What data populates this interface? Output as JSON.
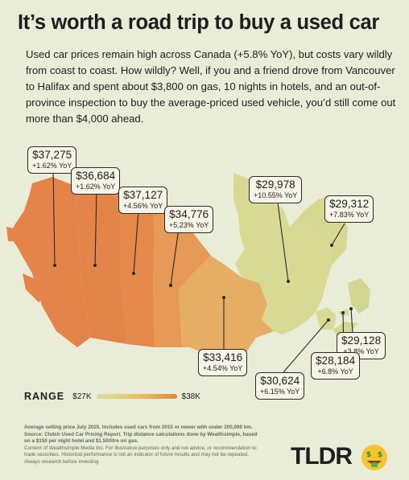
{
  "title": "It’s worth a road trip to buy a used car",
  "intro": "Used car prices remain high across Canada (+5.8% YoY), but costs vary wildly from coast to coast. How wildly? Well, if you and a friend drove from Vancouver to Halifax and spent about $3,800 on gas, 10 nights in hotels, and an out-of-province inspection to buy the average-priced used vehicle, you’d still come out more than $4,000 ahead.",
  "colors": {
    "background": "#e9ecd6",
    "high": "#e3873e",
    "mid": "#e7c26a",
    "low": "#d8dea2"
  },
  "callouts": [
    {
      "region": "British Columbia",
      "price": "$37,275",
      "yoy": "+1.62% YoY"
    },
    {
      "region": "Alberta",
      "price": "$36,684",
      "yoy": "+1.62% YoY"
    },
    {
      "region": "Saskatchewan",
      "price": "$37,127",
      "yoy": "+4.56% YoY"
    },
    {
      "region": "Manitoba",
      "price": "$34,776",
      "yoy": "+5.23% YoY"
    },
    {
      "region": "Quebec",
      "price": "$29,978",
      "yoy": "+10.55% YoY"
    },
    {
      "region": "Newfoundland and Labrador",
      "price": "$29,312",
      "yoy": "+7.83% YoY"
    },
    {
      "region": "Nova Scotia",
      "price": "$29,128",
      "yoy": "+3.8% YoY"
    },
    {
      "region": "Ontario",
      "price": "$33,416",
      "yoy": "+4.54% YoY"
    },
    {
      "region": "Prince Edward Island",
      "price": "$28,184",
      "yoy": "+6.8% YoY"
    },
    {
      "region": "New Brunswick",
      "price": "$30,624",
      "yoy": "+6.15% YoY"
    }
  ],
  "legend": {
    "label": "RANGE",
    "min": "$27K",
    "max": "$38K"
  },
  "footnote": {
    "bold": "Average selling price July 2025. Includes used cars from 2015 or newer with under 200,000 km. Source: Clutch Used Car Pricing Report. Trip distance calculations done by Wealthsimple, based on a $150 per night hotel and $1.50/litre on gas.",
    "disclaimer": "Content of Wealthsimple Media Inc. For illustrative purposes only and not advice, or recommendation to trade securities. Historical performance is not an indicator of future results and may not be repeated. Always research before investing."
  },
  "logo": "TLDR",
  "logo_icon": "money-face-emoji-icon"
}
